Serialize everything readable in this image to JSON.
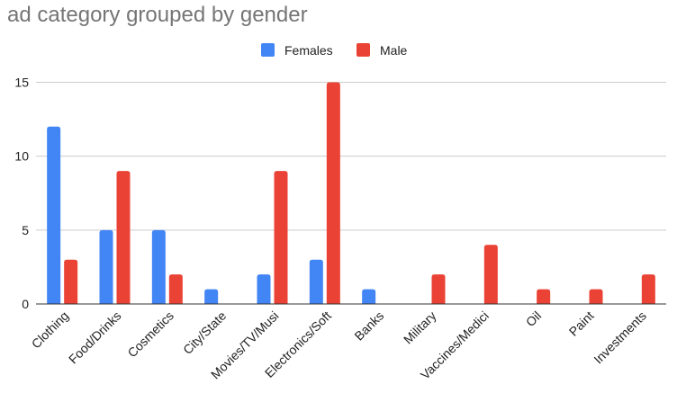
{
  "chart_data": {
    "type": "bar",
    "title": "ad category grouped by gender",
    "xlabel": "",
    "ylabel": "",
    "ylim": [
      0,
      16
    ],
    "yticks": [
      0,
      5,
      10,
      15
    ],
    "grid": true,
    "legend_position": "top",
    "categories": [
      "Clothing",
      "Food/Drinks",
      "Cosmetics",
      "City/State",
      "Movies/TV/Musi",
      "Electronics/Soft",
      "Banks",
      "Military",
      "Vaccines/Medici",
      "Oil",
      "Paint",
      "Investments"
    ],
    "series": [
      {
        "name": "Females",
        "color": "#4285f4",
        "values": [
          12,
          5,
          5,
          1,
          2,
          3,
          1,
          0,
          0,
          0,
          0,
          0
        ]
      },
      {
        "name": "Male",
        "color": "#ea4335",
        "values": [
          3,
          9,
          2,
          0,
          9,
          15,
          0,
          2,
          4,
          1,
          1,
          2
        ]
      }
    ]
  }
}
